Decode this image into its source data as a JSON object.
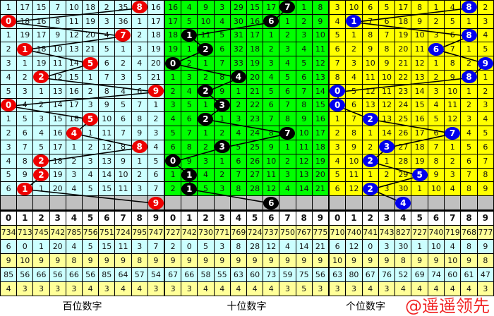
{
  "chart_data": {
    "type": "table",
    "header_digits": [
      "0",
      "1",
      "2",
      "3",
      "4",
      "5",
      "6",
      "7",
      "8",
      "9"
    ],
    "sections": [
      {
        "name": "百位数字",
        "cell_color": "#ccffff",
        "ball_color": "#ee0000",
        "draws": [
          8,
          0,
          7,
          1,
          5,
          2,
          9,
          0,
          5,
          4,
          8,
          2,
          2,
          1
        ],
        "next": 9,
        "rows": [
          [
            1,
            17,
            15,
            7,
            10,
            18,
            2,
            35,
            8,
            16
          ],
          [
            0,
            18,
            16,
            8,
            11,
            19,
            3,
            36,
            1,
            17
          ],
          [
            1,
            19,
            17,
            9,
            12,
            20,
            4,
            7,
            2,
            18
          ],
          [
            2,
            1,
            18,
            10,
            13,
            21,
            5,
            1,
            3,
            19
          ],
          [
            3,
            1,
            19,
            11,
            14,
            5,
            6,
            2,
            4,
            20
          ],
          [
            4,
            2,
            2,
            12,
            15,
            1,
            7,
            3,
            5,
            21
          ],
          [
            5,
            3,
            1,
            13,
            16,
            2,
            8,
            4,
            6,
            9
          ],
          [
            0,
            4,
            2,
            14,
            17,
            3,
            9,
            5,
            7,
            1
          ],
          [
            1,
            5,
            3,
            15,
            18,
            5,
            10,
            6,
            8,
            2
          ],
          [
            2,
            6,
            4,
            16,
            4,
            1,
            11,
            7,
            9,
            3
          ],
          [
            3,
            7,
            5,
            17,
            1,
            2,
            12,
            8,
            8,
            4
          ],
          [
            4,
            8,
            2,
            18,
            2,
            3,
            13,
            9,
            1,
            5
          ],
          [
            5,
            9,
            2,
            19,
            3,
            4,
            14,
            10,
            2,
            6
          ],
          [
            6,
            1,
            1,
            20,
            4,
            5,
            15,
            11,
            3,
            7
          ]
        ],
        "stats": [
          [
            734,
            713,
            745,
            742,
            785,
            756,
            751,
            724,
            795,
            747
          ],
          [
            6,
            0,
            1,
            20,
            4,
            5,
            15,
            11,
            3,
            7
          ],
          [
            9,
            10,
            9,
            9,
            8,
            9,
            9,
            9,
            8,
            9
          ],
          [
            85,
            56,
            66,
            56,
            66,
            56,
            85,
            64,
            57,
            54
          ],
          [
            4,
            3,
            3,
            3,
            3,
            4,
            3,
            4,
            4,
            3
          ]
        ]
      },
      {
        "name": "十位数字",
        "cell_color": "#00ff00",
        "ball_color": "#000000",
        "draws": [
          7,
          6,
          1,
          2,
          0,
          4,
          2,
          3,
          2,
          7,
          3,
          0,
          1,
          1
        ],
        "next": 6,
        "rows": [
          [
            16,
            4,
            9,
            3,
            29,
            15,
            17,
            7,
            1,
            8
          ],
          [
            17,
            5,
            10,
            4,
            30,
            16,
            6,
            1,
            2,
            9
          ],
          [
            18,
            1,
            11,
            5,
            31,
            17,
            1,
            2,
            3,
            10
          ],
          [
            19,
            1,
            2,
            6,
            32,
            18,
            2,
            3,
            4,
            11
          ],
          [
            0,
            2,
            1,
            7,
            33,
            19,
            3,
            4,
            5,
            12
          ],
          [
            1,
            3,
            2,
            8,
            4,
            20,
            4,
            5,
            6,
            13
          ],
          [
            2,
            4,
            2,
            9,
            1,
            21,
            5,
            6,
            7,
            14
          ],
          [
            3,
            5,
            1,
            3,
            2,
            22,
            6,
            7,
            8,
            15
          ],
          [
            4,
            6,
            2,
            1,
            3,
            23,
            7,
            8,
            9,
            16
          ],
          [
            5,
            7,
            1,
            2,
            4,
            24,
            8,
            7,
            10,
            17
          ],
          [
            6,
            8,
            2,
            3,
            5,
            25,
            9,
            1,
            11,
            18
          ],
          [
            0,
            9,
            3,
            1,
            6,
            26,
            10,
            2,
            12,
            19
          ],
          [
            1,
            1,
            4,
            2,
            7,
            27,
            11,
            3,
            13,
            20
          ],
          [
            2,
            1,
            5,
            3,
            8,
            28,
            12,
            4,
            14,
            21
          ]
        ],
        "stats": [
          [
            727,
            742,
            730,
            771,
            769,
            724,
            737,
            750,
            767,
            775
          ],
          [
            2,
            0,
            5,
            3,
            8,
            28,
            12,
            4,
            14,
            21
          ],
          [
            9,
            9,
            9,
            9,
            9,
            9,
            9,
            9,
            9,
            9
          ],
          [
            67,
            66,
            58,
            55,
            63,
            60,
            73,
            59,
            75,
            56
          ],
          [
            3,
            3,
            4,
            4,
            4,
            4,
            4,
            3,
            5,
            3
          ]
        ]
      },
      {
        "name": "个位数字",
        "cell_color": "#ffff00",
        "ball_color": "#0000ee",
        "draws": [
          8,
          1,
          8,
          6,
          9,
          8,
          0,
          0,
          2,
          7,
          3,
          2,
          5,
          2
        ],
        "next": 4,
        "rows": [
          [
            3,
            10,
            6,
            5,
            17,
            8,
            1,
            4,
            8,
            2
          ],
          [
            4,
            1,
            7,
            6,
            18,
            9,
            2,
            5,
            1,
            3
          ],
          [
            5,
            1,
            8,
            7,
            19,
            10,
            3,
            6,
            8,
            4
          ],
          [
            6,
            2,
            9,
            8,
            20,
            11,
            6,
            7,
            1,
            5
          ],
          [
            7,
            3,
            10,
            9,
            21,
            12,
            1,
            8,
            2,
            9
          ],
          [
            8,
            4,
            11,
            10,
            22,
            13,
            2,
            9,
            8,
            1
          ],
          [
            0,
            5,
            12,
            11,
            23,
            14,
            3,
            10,
            1,
            2
          ],
          [
            0,
            6,
            13,
            12,
            24,
            15,
            4,
            11,
            2,
            3
          ],
          [
            1,
            7,
            2,
            13,
            25,
            16,
            5,
            12,
            3,
            4
          ],
          [
            2,
            8,
            1,
            14,
            26,
            17,
            6,
            7,
            4,
            5
          ],
          [
            3,
            9,
            2,
            3,
            27,
            18,
            7,
            1,
            5,
            6
          ],
          [
            4,
            10,
            2,
            1,
            28,
            19,
            8,
            2,
            6,
            7
          ],
          [
            5,
            11,
            1,
            2,
            29,
            5,
            9,
            3,
            7,
            8
          ],
          [
            6,
            12,
            2,
            3,
            30,
            1,
            10,
            4,
            8,
            9
          ]
        ],
        "stats": [
          [
            710,
            740,
            741,
            743,
            827,
            727,
            740,
            719,
            768,
            777
          ],
          [
            6,
            12,
            0,
            3,
            30,
            1,
            10,
            4,
            8,
            9
          ],
          [
            10,
            9,
            9,
            9,
            8,
            9,
            9,
            10,
            9,
            8
          ],
          [
            63,
            80,
            67,
            76,
            52,
            69,
            74,
            60,
            61,
            47
          ],
          [
            3,
            3,
            4,
            3,
            4,
            4,
            4,
            4,
            4,
            3
          ]
        ]
      }
    ]
  },
  "watermark": "@遥遥领先"
}
